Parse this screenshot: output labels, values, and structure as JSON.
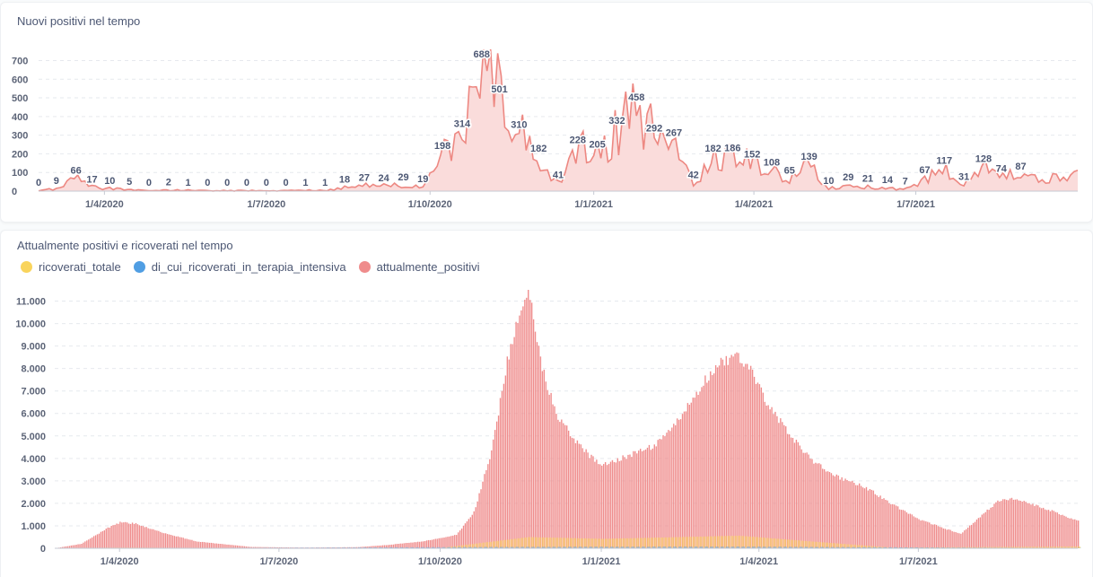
{
  "chart1": {
    "title": "Nuovi positivi nel tempo",
    "color": "#ed8882",
    "fill": "#fadcdb",
    "chart_data": {
      "type": "area",
      "title": "Nuovi positivi nel tempo",
      "xlabel": "",
      "ylabel": "",
      "ylim": [
        0,
        760
      ],
      "yticks": [
        "0",
        "100",
        "200",
        "300",
        "400",
        "500",
        "600",
        "700"
      ],
      "x_range": [
        "2020-02-24",
        "2021-09-30"
      ],
      "x_ticks": [
        {
          "date": "2020-04-01",
          "label": "1/4/2020"
        },
        {
          "date": "2020-07-01",
          "label": "1/7/2020"
        },
        {
          "date": "2020-10-01",
          "label": "1/10/2020"
        },
        {
          "date": "2021-01-01",
          "label": "1/1/2021"
        },
        {
          "date": "2021-04-01",
          "label": "1/4/2021"
        },
        {
          "date": "2021-07-01",
          "label": "1/7/2021"
        }
      ],
      "x": [
        "2020-02-24",
        "2020-03-05",
        "2020-03-16",
        "2020-03-25",
        "2020-04-04",
        "2020-04-15",
        "2020-04-26",
        "2020-05-07",
        "2020-05-18",
        "2020-05-29",
        "2020-06-09",
        "2020-06-20",
        "2020-07-01",
        "2020-07-12",
        "2020-07-23",
        "2020-08-03",
        "2020-08-14",
        "2020-08-25",
        "2020-09-05",
        "2020-09-16",
        "2020-09-27",
        "2020-10-08",
        "2020-10-19",
        "2020-10-30",
        "2020-11-09",
        "2020-11-20",
        "2020-12-01",
        "2020-12-12",
        "2020-12-23",
        "2021-01-03",
        "2021-01-14",
        "2021-01-25",
        "2021-02-04",
        "2021-02-15",
        "2021-02-26",
        "2021-03-09",
        "2021-03-20",
        "2021-03-31",
        "2021-04-11",
        "2021-04-21",
        "2021-05-02",
        "2021-05-13",
        "2021-05-24",
        "2021-06-04",
        "2021-06-15",
        "2021-06-25",
        "2021-07-06",
        "2021-07-17",
        "2021-07-28",
        "2021-08-08",
        "2021-08-18",
        "2021-08-29",
        "2021-09-09",
        "2021-09-20",
        "2021-09-30"
      ],
      "values": [
        0,
        9,
        66,
        17,
        10,
        5,
        0,
        2,
        1,
        0,
        0,
        0,
        0,
        0,
        1,
        1,
        18,
        27,
        24,
        29,
        19,
        198,
        314,
        688,
        501,
        310,
        182,
        41,
        228,
        205,
        332,
        458,
        292,
        267,
        42,
        182,
        186,
        152,
        108,
        65,
        139,
        10,
        29,
        21,
        14,
        7,
        67,
        117,
        31,
        128,
        74,
        87,
        60,
        70,
        80
      ],
      "data_labels": [
        "0",
        "9",
        "66",
        "17",
        "10",
        "5",
        "0",
        "2",
        "1",
        "0",
        "0",
        "0",
        "0",
        "0",
        "1",
        "1",
        "18",
        "27",
        "24",
        "29",
        "19",
        "198",
        "314",
        "688",
        "501",
        "310",
        "182",
        "41",
        "228",
        "205",
        "332",
        "458",
        "292",
        "267",
        "42",
        "182",
        "186",
        "152",
        "108",
        "65",
        "139",
        "10",
        "29",
        "21",
        "14",
        "7",
        "67",
        "117",
        "31",
        "128",
        "74",
        "87",
        "",
        "",
        ""
      ]
    }
  },
  "chart2": {
    "title": "Attualmente positivi e ricoverati nel tempo",
    "chart_data": {
      "type": "bar",
      "title": "Attualmente positivi e ricoverati nel tempo",
      "xlabel": "",
      "ylabel": "",
      "ylim": [
        0,
        11500
      ],
      "yticks": [
        "0",
        "1.000",
        "2.000",
        "3.000",
        "4.000",
        "5.000",
        "6.000",
        "7.000",
        "8.000",
        "9.000",
        "10.000",
        "11.000"
      ],
      "x_range": [
        "2020-02-24",
        "2021-09-30"
      ],
      "x_ticks": [
        {
          "date": "2020-04-01",
          "label": "1/4/2020"
        },
        {
          "date": "2020-07-01",
          "label": "1/7/2020"
        },
        {
          "date": "2020-10-01",
          "label": "1/10/2020"
        },
        {
          "date": "2021-01-01",
          "label": "1/1/2021"
        },
        {
          "date": "2021-04-01",
          "label": "1/4/2021"
        },
        {
          "date": "2021-07-01",
          "label": "1/7/2021"
        }
      ],
      "legend_position": "top-left",
      "series": [
        {
          "name": "ricoverati_totale",
          "color": "#f9d45c",
          "x": [
            "2020-02-24",
            "2020-04-01",
            "2020-06-01",
            "2020-10-01",
            "2020-11-20",
            "2021-01-01",
            "2021-03-20",
            "2021-05-01",
            "2021-06-15",
            "2021-09-30"
          ],
          "values": [
            0,
            30,
            5,
            20,
            500,
            420,
            560,
            300,
            30,
            80
          ]
        },
        {
          "name": "di_cui_ricoverati_in_terapia_intensiva",
          "color": "#509ee3",
          "x": [
            "2020-02-24",
            "2020-11-20",
            "2021-03-20",
            "2021-09-30"
          ],
          "values": [
            0,
            60,
            70,
            10
          ]
        },
        {
          "name": "attualmente_positivi",
          "color": "#ef8c8c",
          "x": [
            "2020-02-24",
            "2020-03-10",
            "2020-03-25",
            "2020-04-01",
            "2020-04-10",
            "2020-04-25",
            "2020-05-15",
            "2020-06-15",
            "2020-07-15",
            "2020-08-15",
            "2020-09-01",
            "2020-09-20",
            "2020-10-01",
            "2020-10-10",
            "2020-10-20",
            "2020-10-30",
            "2020-11-08",
            "2020-11-16",
            "2020-11-20",
            "2020-11-28",
            "2020-12-06",
            "2020-12-15",
            "2020-12-25",
            "2021-01-01",
            "2021-01-15",
            "2021-02-01",
            "2021-02-15",
            "2021-03-01",
            "2021-03-10",
            "2021-03-20",
            "2021-03-25",
            "2021-04-05",
            "2021-04-20",
            "2021-05-01",
            "2021-05-15",
            "2021-06-01",
            "2021-06-15",
            "2021-07-01",
            "2021-07-15",
            "2021-07-25",
            "2021-08-05",
            "2021-08-15",
            "2021-08-25",
            "2021-09-10",
            "2021-09-30"
          ],
          "values": [
            0,
            200,
            900,
            1150,
            1100,
            700,
            300,
            60,
            30,
            50,
            150,
            300,
            450,
            600,
            1600,
            4300,
            8300,
            10800,
            11500,
            8000,
            6000,
            5000,
            4100,
            3700,
            4100,
            4600,
            5800,
            7500,
            8300,
            8500,
            8200,
            6500,
            4900,
            3900,
            3200,
            2700,
            2000,
            1300,
            900,
            650,
            1400,
            2100,
            2200,
            1800,
            1200
          ]
        }
      ]
    }
  }
}
